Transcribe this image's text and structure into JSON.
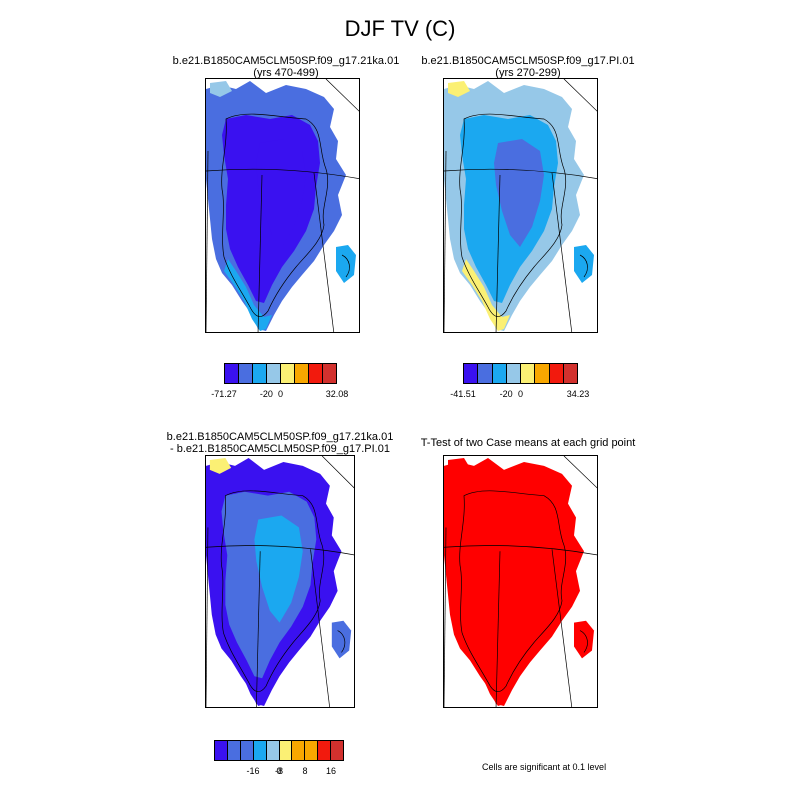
{
  "title": "DJF TV (C)",
  "panels": [
    {
      "id": "case1",
      "title_lines": [
        "b.e21.B1850CAM5CLM50SP.f09_g17.21ka.01",
        "(yrs 470-499)"
      ],
      "colorbar": {
        "colors": [
          "#3a11f0",
          "#4a6ee0",
          "#1ba8f0",
          "#96c8e8",
          "#fbf074",
          "#f8a700",
          "#f21a0d",
          "#d2312e"
        ],
        "tick_labels": [
          "-71.27",
          "-20",
          "0",
          "32.08"
        ],
        "tick_boundaries": [
          0,
          3,
          4,
          8
        ]
      }
    },
    {
      "id": "case2",
      "title_lines": [
        "b.e21.B1850CAM5CLM50SP.f09_g17.PI.01",
        "(yrs 270-299)"
      ],
      "colorbar": {
        "colors": [
          "#3a11f0",
          "#4a6ee0",
          "#1ba8f0",
          "#96c8e8",
          "#fbf074",
          "#f8a700",
          "#f21a0d",
          "#d2312e"
        ],
        "tick_labels": [
          "-41.51",
          "-20",
          "0",
          "34.23"
        ],
        "tick_boundaries": [
          0,
          3,
          4,
          8
        ]
      }
    },
    {
      "id": "diff",
      "title_lines": [
        "b.e21.B1850CAM5CLM50SP.f09_g17.21ka.01",
        "- b.e21.B1850CAM5CLM50SP.f09_g17.PI.01"
      ],
      "colorbar": {
        "colors": [
          "#3a11f0",
          "#4a6ee0",
          "#4a6ee0",
          "#1ba8f0",
          "#96c8e8",
          "#fbf074",
          "#f8a700",
          "#f8a700",
          "#f21a0d",
          "#d2312e"
        ],
        "tick_labels": [
          "-16",
          "-8",
          "0",
          "8",
          "16"
        ],
        "tick_boundaries": [
          3,
          5,
          5,
          7,
          9
        ]
      }
    },
    {
      "id": "ttest",
      "title_lines": [
        "T-Test of two Case means at each grid point"
      ],
      "note": "Cells are significant at 0.1 level"
    }
  ],
  "map_fields": {
    "case1": {
      "outer": "#4a6ee0",
      "mid": "#3a11f0",
      "inner": "#3a11f0",
      "fringe": "#1ba8f0",
      "edge": "#1ba8f0",
      "extra": "#96c8e8"
    },
    "case2": {
      "outer": "#96c8e8",
      "mid": "#1ba8f0",
      "inner": "#4a6ee0",
      "fringe": "#fbf074",
      "edge": "#1ba8f0",
      "extra": "#fbf074"
    },
    "diff": {
      "outer": "#3a11f0",
      "mid": "#4a6ee0",
      "inner": "#1ba8f0",
      "fringe": "#3a11f0",
      "edge": "#4a6ee0",
      "extra": "#fbf074"
    },
    "ttest": {
      "outer": "#ff0000",
      "mid": "#ff0000",
      "inner": "#ff0000",
      "fringe": "#ff0000",
      "edge": "#ff0000",
      "extra": "#ff0000"
    }
  }
}
